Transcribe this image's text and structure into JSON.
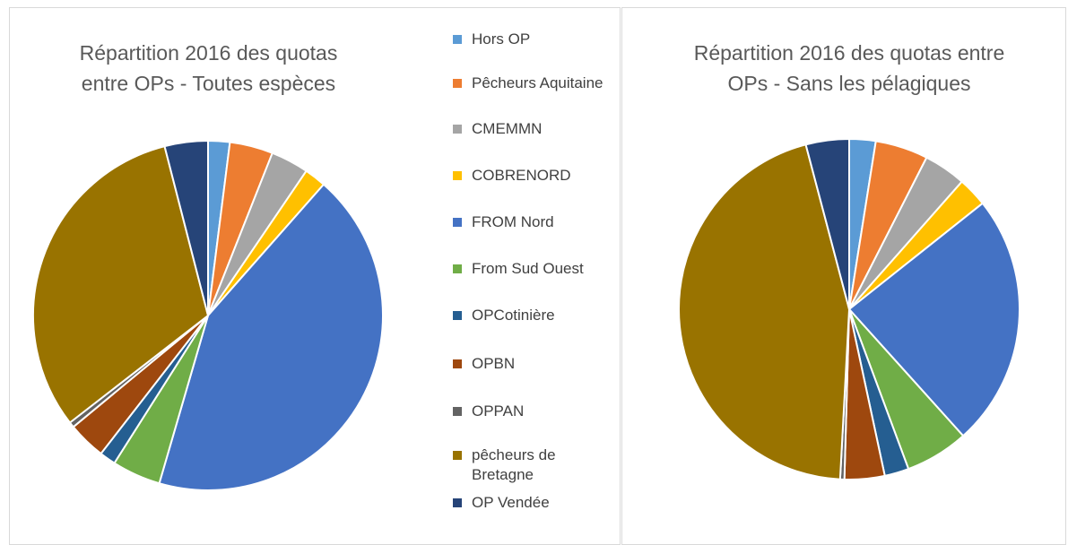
{
  "chart_data": [
    {
      "type": "pie",
      "title": "Répartition 2016 des quotas entre OPs - Toutes espèces",
      "categories": [
        "Hors OP",
        "Pêcheurs Aquitaine",
        "CMEMMN",
        "COBRENORD",
        "FROM Nord",
        "From Sud Ouest",
        "OPCotinière",
        "OPBN",
        "OPPAN",
        "pêcheurs de Bretagne",
        "OP Vendée"
      ],
      "values": [
        2,
        4,
        3.5,
        2,
        43,
        4.5,
        1.5,
        3.5,
        0.5,
        31.5,
        4
      ],
      "colors": [
        "#5b9bd5",
        "#ed7d31",
        "#a5a5a5",
        "#ffc000",
        "#4472c4",
        "#70ad47",
        "#255e91",
        "#9e480e",
        "#636363",
        "#997300",
        "#264478"
      ]
    },
    {
      "type": "pie",
      "title": "Répartition 2016 des quotas entre OPs - Sans les pélagiques",
      "categories": [
        "Hors OP",
        "Pêcheurs Aquitaine",
        "CMEMMN",
        "COBRENORD",
        "FROM Nord",
        "From Sud Ouest",
        "OPCotinière",
        "OPBN",
        "OPPAN",
        "pêcheurs de Bretagne",
        "OP Vendée"
      ],
      "values": [
        2.5,
        5,
        4,
        2.8,
        24,
        6,
        2.3,
        3.8,
        0.4,
        45,
        4.1
      ],
      "colors": [
        "#5b9bd5",
        "#ed7d31",
        "#a5a5a5",
        "#ffc000",
        "#4472c4",
        "#70ad47",
        "#255e91",
        "#9e480e",
        "#636363",
        "#997300",
        "#264478"
      ]
    }
  ]
}
